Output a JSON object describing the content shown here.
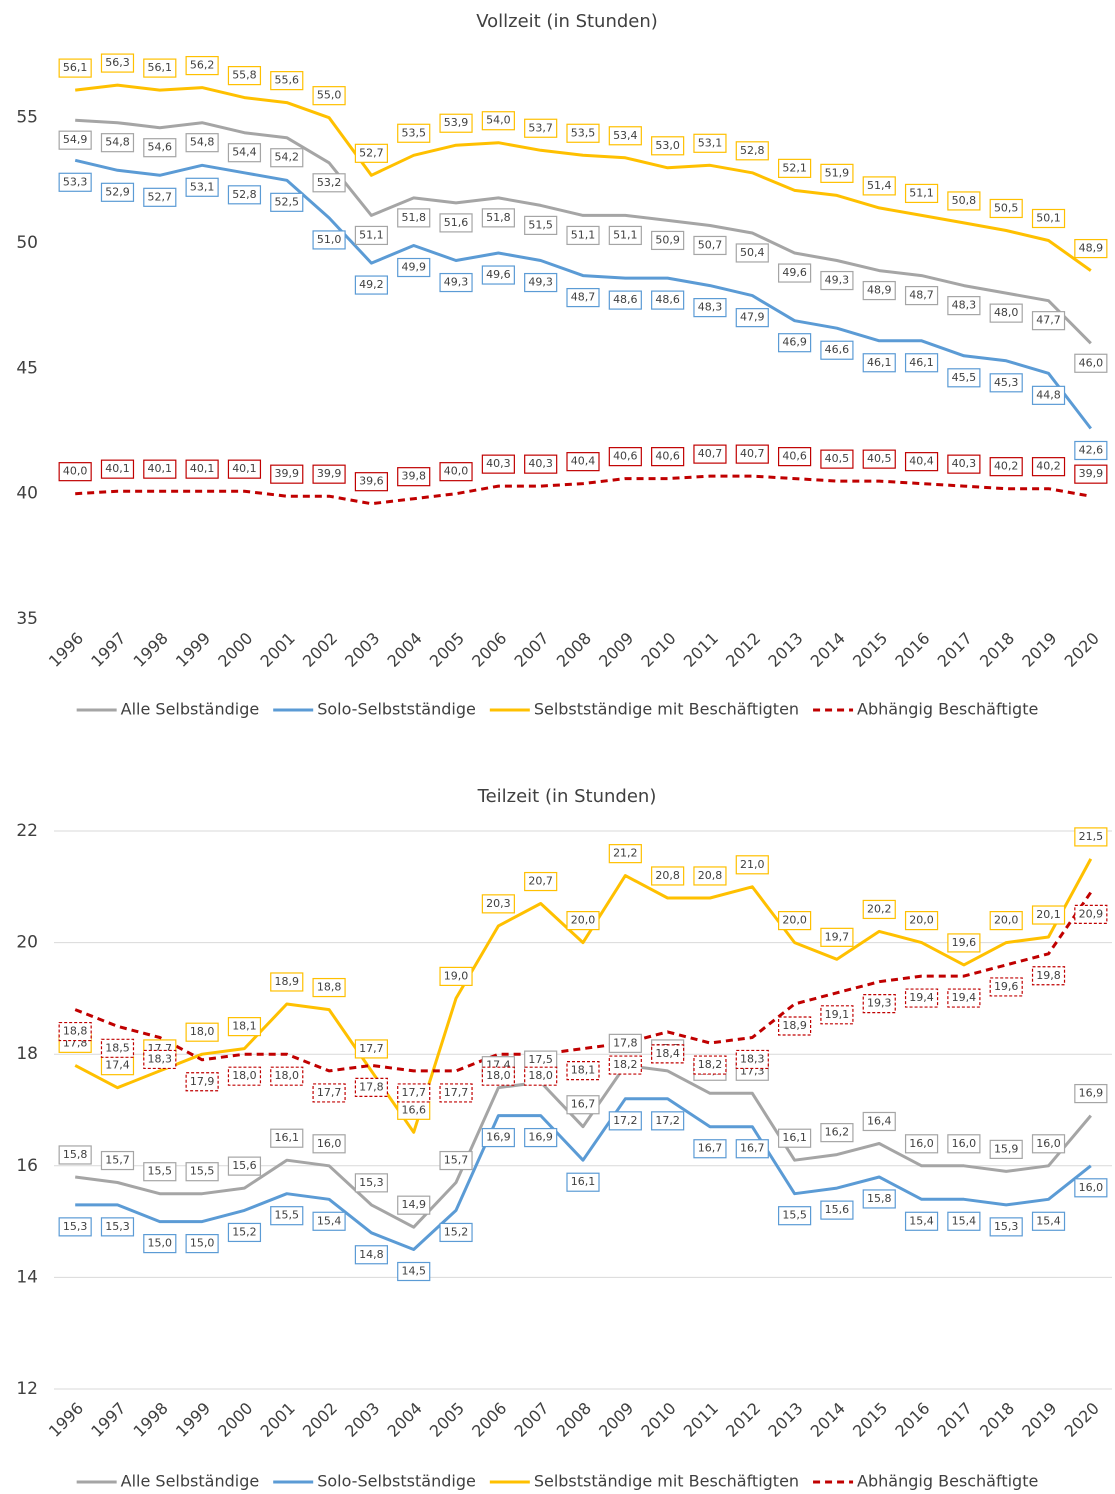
{
  "chart_data": [
    {
      "type": "line",
      "title": "Vollzeit (in Stunden)",
      "categories": [
        "1996",
        "1997",
        "1998",
        "1999",
        "2000",
        "2001",
        "2002",
        "2003",
        "2004",
        "2005",
        "2006",
        "2007",
        "2008",
        "2009",
        "2010",
        "2011",
        "2012",
        "2013",
        "2014",
        "2015",
        "2016",
        "2017",
        "2018",
        "2019",
        "2020"
      ],
      "ylim": [
        35,
        57.5
      ],
      "yticks": [
        35,
        40,
        45,
        50,
        55
      ],
      "grid": false,
      "series": [
        {
          "name": "Alle Selbständige",
          "color": "#a5a5a5",
          "values": [
            54.9,
            54.8,
            54.6,
            54.8,
            54.4,
            54.2,
            53.2,
            51.1,
            51.8,
            51.6,
            51.8,
            51.5,
            51.1,
            51.1,
            50.9,
            50.7,
            50.4,
            49.6,
            49.3,
            48.9,
            48.7,
            48.3,
            48.0,
            47.7,
            46.0
          ],
          "value_labels": [
            "54,9",
            "54,8",
            "54,6",
            "54,8",
            "54,4",
            "54,2",
            "53,2",
            "51,1",
            "51,8",
            "51,6",
            "51,8",
            "51,5",
            "51,1",
            "51,1",
            "50,9",
            "50,7",
            "50,4",
            "49,6",
            "49,3",
            "48,9",
            "48,7",
            "48,3",
            "48,0",
            "47,7",
            "46,0"
          ]
        },
        {
          "name": "Solo-Selbstständige",
          "color": "#5b9bd5",
          "values": [
            53.3,
            52.9,
            52.7,
            53.1,
            52.8,
            52.5,
            51.0,
            49.2,
            49.9,
            49.3,
            49.6,
            49.3,
            48.7,
            48.6,
            48.6,
            48.3,
            47.9,
            46.9,
            46.6,
            46.1,
            46.1,
            45.5,
            45.3,
            44.8,
            42.6
          ],
          "value_labels": [
            "53,3",
            "52,9",
            "52,7",
            "53,1",
            "52,8",
            "52,5",
            "51,0",
            "49,2",
            "49,9",
            "49,3",
            "49,6",
            "49,3",
            "48,7",
            "48,6",
            "48,6",
            "48,3",
            "47,9",
            "46,9",
            "46,6",
            "46,1",
            "46,1",
            "45,5",
            "45,3",
            "44,8",
            "42,6"
          ]
        },
        {
          "name": "Selbstständige mit Beschäftigten",
          "color": "#ffc000",
          "values": [
            56.1,
            56.3,
            56.1,
            56.2,
            55.8,
            55.6,
            55.0,
            52.7,
            53.5,
            53.9,
            54.0,
            53.7,
            53.5,
            53.4,
            53.0,
            53.1,
            52.8,
            52.1,
            51.9,
            51.4,
            51.1,
            50.8,
            50.5,
            50.1,
            48.9
          ],
          "value_labels": [
            "56,1",
            "56,3",
            "56,1",
            "56,2",
            "55,8",
            "55,6",
            "55,0",
            "52,7",
            "53,5",
            "53,9",
            "54,0",
            "53,7",
            "53,5",
            "53,4",
            "53,0",
            "53,1",
            "52,8",
            "52,1",
            "51,9",
            "51,4",
            "51,1",
            "50,8",
            "50,5",
            "50,1",
            "48,9"
          ]
        },
        {
          "name": "Abhängig Beschäftigte",
          "color": "#c00000",
          "dashed": true,
          "values": [
            40.0,
            40.1,
            40.1,
            40.1,
            40.1,
            39.9,
            39.9,
            39.6,
            39.8,
            40.0,
            40.3,
            40.3,
            40.4,
            40.6,
            40.6,
            40.7,
            40.7,
            40.6,
            40.5,
            40.5,
            40.4,
            40.3,
            40.2,
            40.2,
            39.9
          ],
          "value_labels": [
            "40,0",
            "40,1",
            "40,1",
            "40,1",
            "40,1",
            "39,9",
            "39,9",
            "39,6",
            "39,8",
            "40,0",
            "40,3",
            "40,3",
            "40,4",
            "40,6",
            "40,6",
            "40,7",
            "40,7",
            "40,6",
            "40,5",
            "40,5",
            "40,4",
            "40,3",
            "40,2",
            "40,2",
            "39,9"
          ]
        }
      ]
    },
    {
      "type": "line",
      "title": "Teilzeit (in Stunden)",
      "categories": [
        "1996",
        "1997",
        "1998",
        "1999",
        "2000",
        "2001",
        "2002",
        "2003",
        "2004",
        "2005",
        "2006",
        "2007",
        "2008",
        "2009",
        "2010",
        "2011",
        "2012",
        "2013",
        "2014",
        "2015",
        "2016",
        "2017",
        "2018",
        "2019",
        "2020"
      ],
      "ylim": [
        12,
        22
      ],
      "yticks": [
        12,
        14,
        16,
        18,
        20,
        22
      ],
      "grid": true,
      "series": [
        {
          "name": "Alle Selbständige",
          "color": "#a5a5a5",
          "values": [
            15.8,
            15.7,
            15.5,
            15.5,
            15.6,
            16.1,
            16.0,
            15.3,
            14.9,
            15.7,
            17.4,
            17.5,
            16.7,
            17.8,
            17.7,
            17.3,
            17.3,
            16.1,
            16.2,
            16.4,
            16.0,
            16.0,
            15.9,
            16.0,
            16.9
          ],
          "value_labels": [
            "15,8",
            "15,7",
            "15,5",
            "15,5",
            "15,6",
            "16,1",
            "16,0",
            "15,3",
            "14,9",
            "15,7",
            "17,4",
            "17,5",
            "16,7",
            "17,8",
            "17,7",
            "17,3",
            "17,3",
            "16,1",
            "16,2",
            "16,4",
            "16,0",
            "16,0",
            "15,9",
            "16,0",
            "16,9"
          ]
        },
        {
          "name": "Solo-Selbstständige",
          "color": "#5b9bd5",
          "values": [
            15.3,
            15.3,
            15.0,
            15.0,
            15.2,
            15.5,
            15.4,
            14.8,
            14.5,
            15.2,
            16.9,
            16.9,
            16.1,
            17.2,
            17.2,
            16.7,
            16.7,
            15.5,
            15.6,
            15.8,
            15.4,
            15.4,
            15.3,
            15.4,
            16.0
          ],
          "value_labels": [
            "15,3",
            "15,3",
            "15,0",
            "15,0",
            "15,2",
            "15,5",
            "15,4",
            "14,8",
            "14,5",
            "15,2",
            "16,9",
            "16,9",
            "16,1",
            "17,2",
            "17,2",
            "16,7",
            "16,7",
            "15,5",
            "15,6",
            "15,8",
            "15,4",
            "15,4",
            "15,3",
            "15,4",
            "16,0"
          ]
        },
        {
          "name": "Selbstständige mit Beschäftigten",
          "color": "#ffc000",
          "values": [
            17.8,
            17.4,
            17.7,
            18.0,
            18.1,
            18.9,
            18.8,
            17.7,
            16.6,
            19.0,
            20.3,
            20.7,
            20.0,
            21.2,
            20.8,
            20.8,
            21.0,
            20.0,
            19.7,
            20.2,
            20.0,
            19.6,
            20.0,
            20.1,
            21.5
          ],
          "value_labels": [
            "17,8",
            "17,4",
            "17,7",
            "18,0",
            "18,1",
            "18,9",
            "18,8",
            "17,7",
            "16,6",
            "19,0",
            "20,3",
            "20,7",
            "20,0",
            "21,2",
            "20,8",
            "20,8",
            "21,0",
            "20,0",
            "19,7",
            "20,2",
            "20,0",
            "19,6",
            "20,0",
            "20,1",
            "21,5"
          ]
        },
        {
          "name": "Abhängig Beschäftigte",
          "color": "#c00000",
          "dashed": true,
          "values": [
            18.8,
            18.5,
            18.3,
            17.9,
            18.0,
            18.0,
            17.7,
            17.8,
            17.7,
            17.7,
            18.0,
            18.0,
            18.1,
            18.2,
            18.4,
            18.2,
            18.3,
            18.9,
            19.1,
            19.3,
            19.4,
            19.4,
            19.6,
            19.8,
            20.9
          ],
          "value_labels": [
            "18,8",
            "18,5",
            "18,3",
            "17,9",
            "18,0",
            "18,0",
            "17,7",
            "17,8",
            "17,7",
            "17,7",
            "18,0",
            "18,0",
            "18,1",
            "18,2",
            "18,4",
            "18,2",
            "18,3",
            "18,9",
            "19,1",
            "19,3",
            "19,4",
            "19,4",
            "19,6",
            "19,8",
            "20,9"
          ]
        }
      ]
    }
  ]
}
